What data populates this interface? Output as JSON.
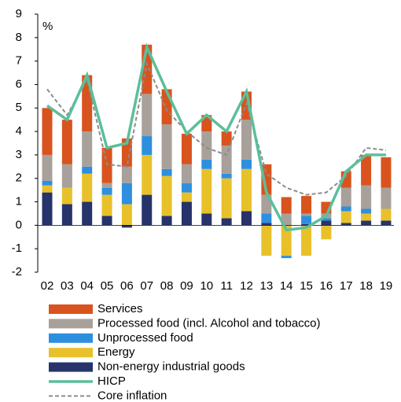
{
  "chart_data": {
    "type": "stacked_bar_line",
    "y_unit": "%",
    "categories": [
      "02",
      "03",
      "04",
      "05",
      "06",
      "07",
      "08",
      "09",
      "10",
      "11",
      "12",
      "13",
      "14",
      "15",
      "16",
      "17",
      "18",
      "19"
    ],
    "ylim": [
      -2,
      9
    ],
    "yticks": [
      -2,
      -1,
      0,
      1,
      2,
      3,
      4,
      5,
      6,
      7,
      8,
      9
    ],
    "series": [
      {
        "name": "Services",
        "color": "#d9531e",
        "kind": "bar",
        "values": [
          2.0,
          1.9,
          2.4,
          1.5,
          1.2,
          2.1,
          1.5,
          1.3,
          0.7,
          0.6,
          1.2,
          1.3,
          0.7,
          0.75,
          0.5,
          0.7,
          1.3,
          1.3
        ]
      },
      {
        "name": "Processed food (incl. Alcohol and tobacco)",
        "color": "#a8a09a",
        "kind": "bar",
        "values": [
          1.1,
          1.0,
          1.5,
          0.2,
          0.7,
          1.8,
          1.9,
          0.8,
          1.2,
          1.2,
          1.7,
          0.8,
          0.5,
          0.1,
          0.2,
          0.8,
          1.0,
          0.9
        ]
      },
      {
        "name": "Unprocessed food",
        "color": "#2e8fdf",
        "kind": "bar",
        "values": [
          0.2,
          0.0,
          0.3,
          0.3,
          0.9,
          0.8,
          0.3,
          0.4,
          0.4,
          0.2,
          0.4,
          0.4,
          -0.1,
          0.35,
          0.1,
          0.2,
          0.2,
          0.0
        ]
      },
      {
        "name": "Energy",
        "color": "#e8c12a",
        "kind": "bar",
        "values": [
          0.3,
          0.7,
          1.2,
          0.9,
          0.9,
          1.7,
          1.7,
          0.4,
          1.9,
          1.7,
          1.8,
          -1.3,
          -1.3,
          -1.3,
          -0.6,
          0.5,
          0.3,
          0.5
        ]
      },
      {
        "name": "Non-energy industrial goods",
        "color": "#27336b",
        "kind": "bar",
        "values": [
          1.4,
          0.9,
          1.0,
          0.4,
          -0.1,
          1.3,
          0.4,
          1.0,
          0.5,
          0.3,
          0.6,
          0.1,
          0.0,
          0.05,
          0.2,
          0.1,
          0.2,
          0.2
        ]
      },
      {
        "name": "HICP",
        "color": "#5cbf9a",
        "kind": "line",
        "values": [
          5.1,
          4.5,
          6.4,
          3.3,
          3.5,
          7.6,
          5.7,
          3.9,
          4.7,
          4.0,
          5.7,
          1.4,
          -0.2,
          -0.1,
          0.4,
          2.3,
          3.0,
          3.0
        ]
      },
      {
        "name": "Core inflation",
        "color": "#8c8c8c",
        "kind": "dashed",
        "values": [
          5.8,
          4.7,
          6.2,
          2.6,
          2.5,
          6.9,
          4.9,
          4.0,
          3.3,
          3.0,
          5.2,
          2.2,
          1.6,
          1.3,
          1.4,
          2.1,
          3.3,
          3.2
        ]
      }
    ]
  }
}
